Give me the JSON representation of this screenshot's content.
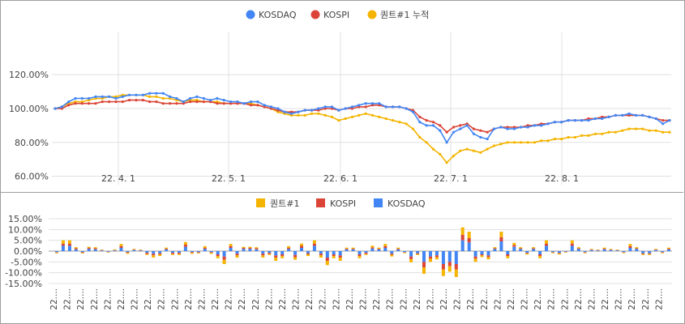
{
  "chart_data": [
    {
      "type": "line",
      "legend_position": "top",
      "x_ticks": [
        "22. 4. 1",
        "22. 5. 1",
        "22. 6. 1",
        "22. 7. 1",
        "22. 8. 1"
      ],
      "y_ticks": [
        "60.00%",
        "80.00%",
        "100.00%",
        "120.00%"
      ],
      "ylim": [
        55,
        145
      ],
      "grid": true,
      "series": [
        {
          "name": "KOSDAQ",
          "color": "#4285f4",
          "values": [
            100,
            101,
            104,
            106,
            106,
            106,
            107,
            107,
            107,
            106,
            107,
            108,
            108,
            108,
            109,
            109,
            109,
            107,
            106,
            104,
            106,
            107,
            106,
            105,
            106,
            105,
            104,
            104,
            103,
            104,
            104,
            102,
            101,
            100,
            98,
            97,
            98,
            99,
            99,
            100,
            101,
            101,
            99,
            100,
            101,
            102,
            103,
            103,
            103,
            101,
            101,
            101,
            100,
            98,
            92,
            90,
            90,
            87,
            80,
            86,
            88,
            90,
            85,
            83,
            82,
            88,
            89,
            88,
            88,
            89,
            89,
            90,
            90,
            91,
            92,
            92,
            93,
            93,
            93,
            93,
            94,
            94,
            95,
            96,
            96,
            97,
            96,
            96,
            95,
            94,
            91,
            93
          ]
        },
        {
          "name": "KOSPI",
          "color": "#db4437",
          "values": [
            100,
            100,
            102,
            103,
            103,
            103,
            103,
            104,
            104,
            104,
            104,
            105,
            105,
            105,
            104,
            104,
            103,
            103,
            103,
            103,
            104,
            104,
            104,
            104,
            103,
            103,
            103,
            103,
            103,
            102,
            102,
            101,
            100,
            99,
            98,
            98,
            98,
            99,
            99,
            99,
            100,
            100,
            99,
            100,
            100,
            101,
            101,
            102,
            102,
            101,
            101,
            101,
            100,
            99,
            95,
            93,
            92,
            90,
            86,
            89,
            90,
            91,
            88,
            87,
            86,
            88,
            89,
            89,
            89,
            89,
            90,
            90,
            91,
            91,
            92,
            92,
            93,
            93,
            93,
            94,
            94,
            95,
            95,
            96,
            96,
            96,
            96,
            96,
            95,
            94,
            93,
            93
          ]
        },
        {
          "name": "퀀트#1 누적",
          "color": "#f4b400",
          "values": [
            100,
            101,
            103,
            104,
            104,
            105,
            106,
            106,
            107,
            107,
            108,
            108,
            108,
            108,
            107,
            107,
            106,
            106,
            105,
            104,
            105,
            105,
            104,
            104,
            104,
            103,
            103,
            103,
            103,
            103,
            102,
            101,
            100,
            98,
            97,
            96,
            96,
            96,
            97,
            97,
            96,
            95,
            93,
            94,
            95,
            96,
            97,
            96,
            95,
            94,
            93,
            92,
            91,
            88,
            83,
            80,
            76,
            73,
            68,
            72,
            75,
            76,
            75,
            74,
            76,
            78,
            79,
            80,
            80,
            80,
            80,
            80,
            81,
            81,
            82,
            82,
            83,
            83,
            84,
            84,
            85,
            85,
            86,
            86,
            87,
            88,
            88,
            88,
            87,
            87,
            86,
            86
          ]
        }
      ]
    },
    {
      "type": "bar",
      "stacked": true,
      "legend_position": "top",
      "y_ticks": [
        "15.00%",
        "10.00%",
        "5.00%",
        "0.00%",
        "-5.00%",
        "-10.00%",
        "-15.00%"
      ],
      "ylim": [
        -15,
        15
      ],
      "x_tick_label": "22....",
      "x_tick_count": 46,
      "grid": true,
      "series": [
        {
          "name": "퀀트#1",
          "color": "#f4b400",
          "values": [
            -0.3,
            1.5,
            1.5,
            0.5,
            -0.3,
            0.5,
            0.5,
            0.2,
            -0.2,
            0.3,
            1,
            -0.5,
            0.3,
            0.2,
            -0.5,
            -1,
            -0.8,
            0.5,
            -0.5,
            -0.5,
            1.2,
            -0.5,
            -0.3,
            0.8,
            -0.5,
            -1,
            -2,
            1,
            -1,
            0.5,
            0.5,
            0.5,
            -1,
            -0.5,
            -1.5,
            -1,
            0.8,
            -1.2,
            1,
            -0.8,
            1.5,
            -1,
            -2,
            -1,
            -1.5,
            0.5,
            0.5,
            -1,
            -0.5,
            0.8,
            0.5,
            1,
            -0.8,
            0.5,
            -0.3,
            -1.5,
            -0.5,
            -3,
            -1.5,
            -1,
            -3,
            -2.5,
            -3.5,
            3.5,
            3,
            -1.5,
            -0.8,
            -1,
            0.5,
            2.5,
            -1,
            1,
            0.5,
            -0.5,
            0.5,
            -1,
            1.5,
            -0.3,
            -0.5,
            -0.2,
            1.5,
            0.5,
            -0.3,
            0.3,
            0.2,
            0.5,
            0.3,
            0.2,
            -0.3,
            1,
            0.5,
            -0.5,
            -0.5,
            0.3,
            -0.3,
            0.5
          ]
        },
        {
          "name": "KOSPI",
          "color": "#db4437",
          "values": [
            -0.2,
            1,
            1,
            0.5,
            -0.3,
            0.5,
            0.5,
            0.2,
            -0.2,
            0.2,
            0.8,
            -0.3,
            0.2,
            0.2,
            -0.5,
            -0.8,
            -0.5,
            0.3,
            -0.5,
            -0.5,
            1,
            -0.3,
            -0.3,
            0.5,
            -0.3,
            -0.8,
            -1.5,
            0.8,
            -0.8,
            0.5,
            0.5,
            0.5,
            -0.8,
            -0.5,
            -1,
            -0.8,
            0.5,
            -1,
            1,
            -0.5,
            1,
            -0.8,
            -1.5,
            -0.8,
            -1,
            0.3,
            0.3,
            -0.8,
            -0.5,
            0.5,
            0.3,
            0.8,
            -0.5,
            0.3,
            -0.2,
            -1.2,
            -0.3,
            -2.5,
            -1,
            -0.8,
            -2.5,
            -2,
            -2.5,
            2.5,
            2,
            -1,
            -0.5,
            -0.8,
            0.3,
            2,
            -0.8,
            0.8,
            0.3,
            -0.3,
            0.3,
            -0.8,
            1,
            -0.2,
            -0.3,
            -0.2,
            1,
            0.3,
            -0.2,
            0.2,
            0.2,
            0.3,
            0.2,
            0.2,
            -0.2,
            0.8,
            0.3,
            -0.3,
            -0.3,
            0.2,
            -0.2,
            0.3
          ]
        },
        {
          "name": "KOSDAQ",
          "color": "#4285f4",
          "values": [
            -0.5,
            2.5,
            2.5,
            0.8,
            -0.5,
            1,
            0.8,
            0.3,
            -0.3,
            0.3,
            1.5,
            -0.5,
            0.5,
            0.3,
            -0.8,
            -1.2,
            -1,
            0.8,
            -0.8,
            -0.8,
            2,
            -0.5,
            -0.5,
            1,
            -0.5,
            -1.5,
            -2.5,
            1.5,
            -1.2,
            1,
            1,
            0.8,
            -1.2,
            -0.8,
            -2,
            -1.5,
            1,
            -1.8,
            1.5,
            -1,
            2.5,
            -1.2,
            -3,
            -1.5,
            -2,
            0.8,
            0.8,
            -1.5,
            -0.8,
            1.2,
            0.8,
            1.5,
            -1.2,
            0.8,
            -0.5,
            -2.5,
            -1,
            -5,
            -2.5,
            -2,
            -6,
            -5,
            -6,
            5,
            4,
            -2.5,
            -1.5,
            -2,
            1,
            4.5,
            -1.5,
            2,
            1,
            -0.8,
            1,
            -1.5,
            2.5,
            -0.5,
            -0.8,
            -0.3,
            2.5,
            1,
            -0.5,
            0.5,
            0.3,
            0.8,
            0.5,
            0.3,
            -0.5,
            1.5,
            1,
            -1,
            -1,
            0.5,
            -0.5,
            0.8
          ]
        }
      ]
    }
  ]
}
